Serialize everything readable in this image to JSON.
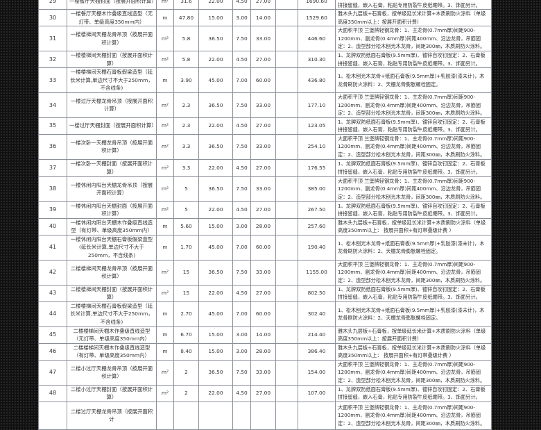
{
  "notes": {
    "keel": "大面积平顶 兰堡牌轻钢龙骨：1、主龙骨(0.7mm厚)间距900-1200mm、副龙骨(0.4mm厚)间距400mm、沿边龙骨，吊筋固定：2、造型部分松木刨光木龙骨，间距300㎜，木质刷防火涂料。",
    "board": "1、龙牌双防纸面石膏板(9.5mm厚)、镀锌自攻钉固定：2、石膏板拼接留缝，嵌入石膏，粘贴专用防裂牛皮纸绷带。3、饰面另计。",
    "line_nolight": "雅木头九层板+石膏板，按单级延长米计算+木质刷防火涂料（单级高度350mm以上：按展开面积计费）",
    "line_light": "雅木头九层板+石膏板，按单级延长米计算+木质刷防火涂料（单级高度350mm以上： 按展开面积+有灯带叠级计费 ）",
    "beam": "1、松木刨光木龙骨+纸面石膏板(9.5mm厚)+乳胶漆(漆未计)，木龙骨刷防火涂料：2、天棚龙骨膨胀螺栓固定。"
  },
  "rows": [
    {
      "no": "29",
      "desc": "一楼餐厅天棚封面（按展开面积计算）",
      "unit": "m²",
      "qty": "31.6",
      "p1": "22.00",
      "p2": "4.50",
      "p3": "27.00",
      "extra": "",
      "total": "1690.60",
      "note": "board"
    },
    {
      "no": "30",
      "desc": "一楼餐厅天棚木作叠级直线造型（无灯带、单级高度350mm内）",
      "unit": "m",
      "qty": "47.80",
      "p1": "15.00",
      "p2": "3.00",
      "p3": "14.00",
      "extra": "",
      "total": "1529.60",
      "note": "line_nolight"
    },
    {
      "no": "31",
      "desc": "一楼楼梯间天棚龙骨吊顶（按展开面积计算）",
      "unit": "m²",
      "qty": "5.8",
      "p1": "36.50",
      "p2": "7.50",
      "p3": "33.00",
      "extra": "",
      "total": "446.60",
      "note": "keel"
    },
    {
      "no": "32",
      "desc": "一楼楼梯间天棚封面（按展开面积计算）",
      "unit": "m²",
      "qty": "5.8",
      "p1": "22.00",
      "p2": "4.50",
      "p3": "27.00",
      "extra": "",
      "total": "310.30",
      "note": "board"
    },
    {
      "no": "33",
      "desc": "一楼楼梯间天棚石膏板假梁造型（延长米计算,单边尺寸不大于250mm，不含线条)",
      "unit": "m",
      "qty": "3.90",
      "p1": "45.00",
      "p2": "7.00",
      "p3": "60.00",
      "extra": "",
      "total": "436.80",
      "note": "beam"
    },
    {
      "no": "34",
      "desc": "一楼过厅天棚龙骨吊顶（按展开面积计算）",
      "unit": "m²",
      "qty": "2.3",
      "p1": "36.50",
      "p2": "7.50",
      "p3": "33.00",
      "extra": "",
      "total": "177.10",
      "note": "keel"
    },
    {
      "no": "35",
      "desc": "一楼过厅天棚封面（按展开面积计算）",
      "unit": "m²",
      "qty": "2.3",
      "p1": "22.00",
      "p2": "4.50",
      "p3": "27.00",
      "extra": "",
      "total": "123.05",
      "note": "board"
    },
    {
      "no": "36",
      "desc": "一楼次卧一天棚龙骨吊顶（按展开面积计算）",
      "unit": "m²",
      "qty": "3.3",
      "p1": "36.50",
      "p2": "7.50",
      "p3": "33.00",
      "extra": "",
      "total": "254.10",
      "note": "keel"
    },
    {
      "no": "37",
      "desc": "一楼次卧一天棚封面（按展开面积计算）",
      "unit": "m²",
      "qty": "3.3",
      "p1": "22.00",
      "p2": "4.50",
      "p3": "27.00",
      "extra": "",
      "total": "176.55",
      "note": "board"
    },
    {
      "no": "38",
      "desc": "一楼休闲内阳台天棚龙骨吊顶（按展开面积计算）",
      "unit": "m²",
      "qty": "5",
      "p1": "36.50",
      "p2": "7.50",
      "p3": "33.00",
      "extra": "",
      "total": "385.00",
      "note": "keel"
    },
    {
      "no": "39",
      "desc": "一楼休闲内阳台天棚封面（按展开面积计算）",
      "unit": "m²",
      "qty": "5",
      "p1": "22.00",
      "p2": "4.50",
      "p3": "27.00",
      "extra": "",
      "total": "267.50",
      "note": "board"
    },
    {
      "no": "40",
      "desc": "一楼休闲内阳台天棚木作叠级直线造型（有灯带、单级高度350mm内）",
      "unit": "m",
      "qty": "5.60",
      "p1": "15.00",
      "p2": "3.00",
      "p3": "28.00",
      "extra": "",
      "total": "257.60",
      "note": "line_light"
    },
    {
      "no": "41",
      "desc": "一楼休闲内阳台天棚石膏板假梁造型(延长米计算,单边尺寸不大于250mm，不含线条)",
      "unit": "m",
      "qty": "1.70",
      "p1": "45.00",
      "p2": "7.00",
      "p3": "60.00",
      "extra": "",
      "total": "190.40",
      "note": "beam"
    },
    {
      "no": "42",
      "desc": "二楼楼梯间天棚龙骨吊顶（按展开面积计算）",
      "unit": "m²",
      "qty": "15",
      "p1": "36.50",
      "p2": "7.50",
      "p3": "33.00",
      "extra": "",
      "total": "1155.00",
      "note": "keel"
    },
    {
      "no": "43",
      "desc": "二楼楼梯间天棚封面（按展开面积计算）",
      "unit": "m²",
      "qty": "15",
      "p1": "22.00",
      "p2": "4.50",
      "p3": "27.00",
      "extra": "",
      "total": "802.50",
      "note": "board"
    },
    {
      "no": "44",
      "desc": "二楼楼梯间天棚石膏板假梁造型（延长米计算,单边尺寸不大于250mm，不含线条)",
      "unit": "m",
      "qty": "2.70",
      "p1": "45.00",
      "p2": "7.00",
      "p3": "60.00",
      "extra": "",
      "total": "302.40",
      "note": "beam"
    },
    {
      "no": "45",
      "desc": "二楼楼梯间天棚木作叠级直线造型（无灯带、单级高度350mm内）",
      "unit": "m",
      "qty": "6.70",
      "p1": "15.00",
      "p2": "3.00",
      "p3": "14.00",
      "extra": "",
      "total": "214.40",
      "note": "line_nolight"
    },
    {
      "no": "46",
      "desc": "二楼楼梯间天棚木作叠级直线造型（有灯带、单级高度350mm内）",
      "unit": "m",
      "qty": "8.40",
      "p1": "15.00",
      "p2": "3.00",
      "p3": "28.00",
      "extra": "",
      "total": "386.40",
      "note": "line_light"
    },
    {
      "no": "47",
      "desc": "二楼小过厅天棚龙骨吊顶（按展开面积计算）",
      "unit": "m²",
      "qty": "2",
      "p1": "36.50",
      "p2": "7.50",
      "p3": "33.00",
      "extra": "",
      "total": "154.00",
      "note": "keel"
    },
    {
      "no": "48",
      "desc": "二楼小过厅天棚封面（按展开面积计算）",
      "unit": "m²",
      "qty": "2",
      "p1": "22.00",
      "p2": "4.50",
      "p3": "27.00",
      "extra": "",
      "total": "107.00",
      "note": "board"
    },
    {
      "no": "",
      "desc": "二楼过厅天棚龙骨吊顶（按展开面积计",
      "unit": "",
      "qty": "",
      "p1": "",
      "p2": "",
      "p3": "",
      "extra": "",
      "total": "",
      "note": "keel"
    }
  ]
}
